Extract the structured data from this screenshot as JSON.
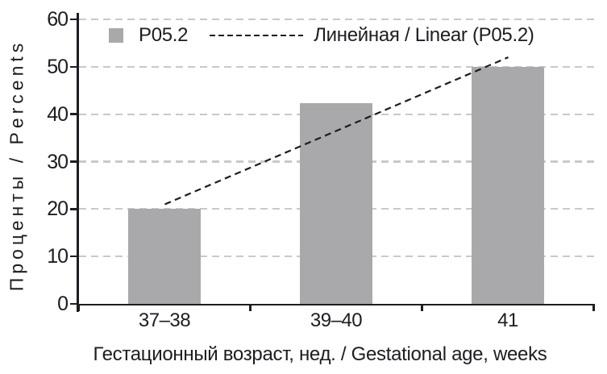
{
  "colors": {
    "background": "#ffffff",
    "bar_fill": "#a9a9ab",
    "gridline": "#c9c9c9",
    "axis": "#1c1c22",
    "text": "#1c1c22",
    "trendline": "#1c1c22"
  },
  "legend": {
    "series_label": "P05.2",
    "trend_label": "Линейная / Linear (P05.2)"
  },
  "chart_data": {
    "type": "bar",
    "categories": [
      "37–38",
      "39–40",
      "41"
    ],
    "series": [
      {
        "name": "P05.2",
        "values": [
          20,
          42.3,
          50
        ]
      }
    ],
    "trendline": {
      "name": "Линейная / Linear (P05.2)",
      "style": "dashed",
      "start_value": 21,
      "end_value": 52
    },
    "title": "",
    "xlabel": "Гестационный возраст, нед. / Gestational age, weeks",
    "ylabel": "Проценты / Percents",
    "ylim": [
      0,
      60
    ],
    "yticks": [
      0,
      10,
      20,
      30,
      40,
      50,
      60
    ],
    "grid": "horizontal-dashed",
    "legend_position": "top-inside"
  }
}
